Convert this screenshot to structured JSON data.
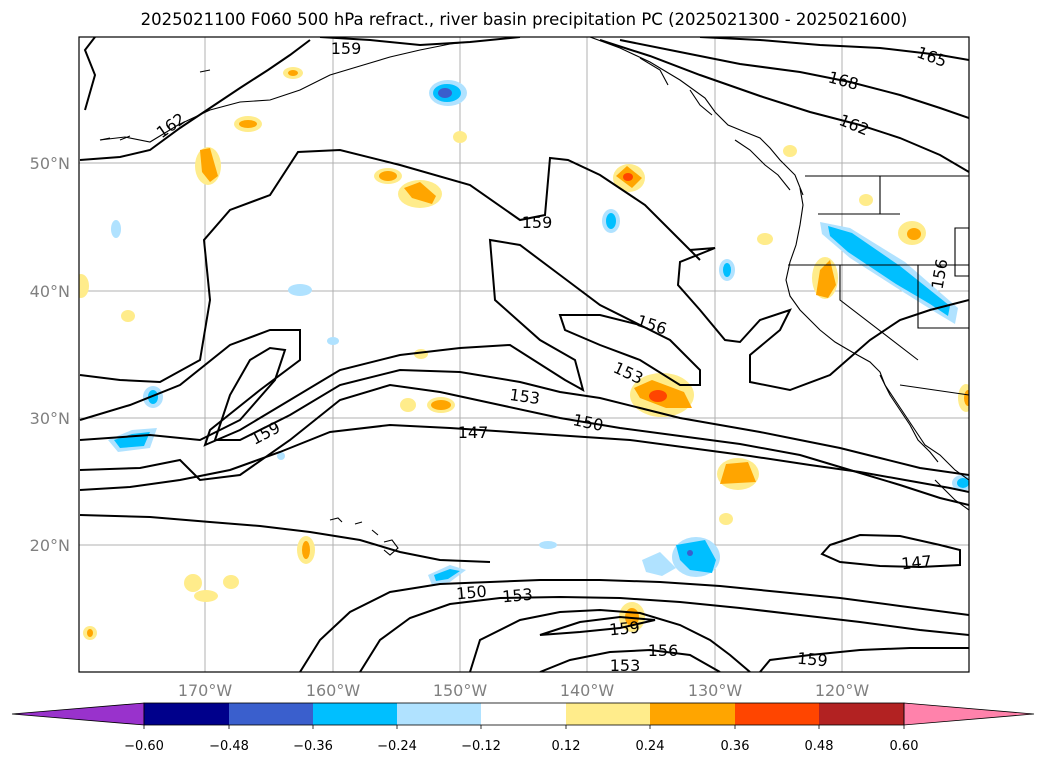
{
  "title": "2025021100 F060 500 hPa refract., river basin precipitation PC (2025021300 - 2025021600)",
  "map": {
    "lat_labels": [
      "50°N",
      "40°N",
      "30°N",
      "20°N"
    ],
    "lon_labels": [
      "170°W",
      "160°W",
      "150°W",
      "140°W",
      "130°W",
      "120°W"
    ],
    "contour_labels": [
      "159",
      "162",
      "165",
      "168",
      "162",
      "159",
      "156",
      "153",
      "153",
      "150",
      "147",
      "159",
      "150",
      "153",
      "159",
      "156",
      "153",
      "159",
      "147",
      "156"
    ],
    "colors": {
      "contour": "#000000",
      "grid": "#b0b0b0",
      "tick_label": "#808080"
    }
  },
  "colorbar": {
    "colors": [
      "#9932cc",
      "#00008b",
      "#3a5fcd",
      "#00bfff",
      "#b0e2ff",
      "#ffffff",
      "#ffec8b",
      "#ffa500",
      "#ff4500",
      "#b22222",
      "#ff82ab"
    ],
    "tick_labels": [
      "−0.60",
      "−0.48",
      "−0.36",
      "−0.24",
      "−0.12",
      "0.12",
      "0.24",
      "0.36",
      "0.48",
      "0.60"
    ]
  }
}
